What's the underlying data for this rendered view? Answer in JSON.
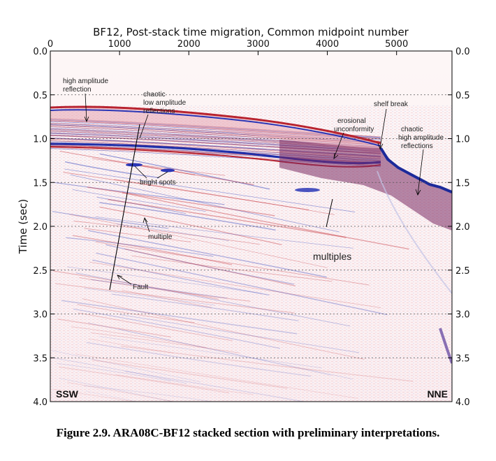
{
  "figure": {
    "title": "BF12, Post-stack time migration, Common midpoint number",
    "y_axis_label": "Time (sec)",
    "x_ticks": [
      "0",
      "1000",
      "2000",
      "3000",
      "4000",
      "5000"
    ],
    "y_ticks": [
      "0.0",
      "0.5",
      "1.0",
      "1.5",
      "2.0",
      "2.5",
      "3.0",
      "3.5",
      "4.0"
    ],
    "corner_left": "SSW",
    "corner_right": "NNE",
    "colors": {
      "positive": "#c0212b",
      "negative": "#2235b8",
      "background": "#fbeff0"
    },
    "caption": "Figure 2.9. ARA08C-BF12 stacked section with preliminary interpretations."
  },
  "annotations": {
    "high_amp_l1": "high amplitude",
    "high_amp_l2": "reflection",
    "chaotic_low_l1": "chaotic",
    "chaotic_low_l2": "low amplitude",
    "chaotic_low_l3": "reflections",
    "erosional_l1": "erosional",
    "erosional_l2": "unconformity",
    "shelf_break": "shelf break",
    "chaotic_high_l1": "chaotic",
    "chaotic_high_l2": "high amplitude",
    "chaotic_high_l3": "reflections",
    "bright_spots": "bright spots",
    "multiple": "multiple",
    "multiples": "multiples",
    "fault": "Fault"
  }
}
